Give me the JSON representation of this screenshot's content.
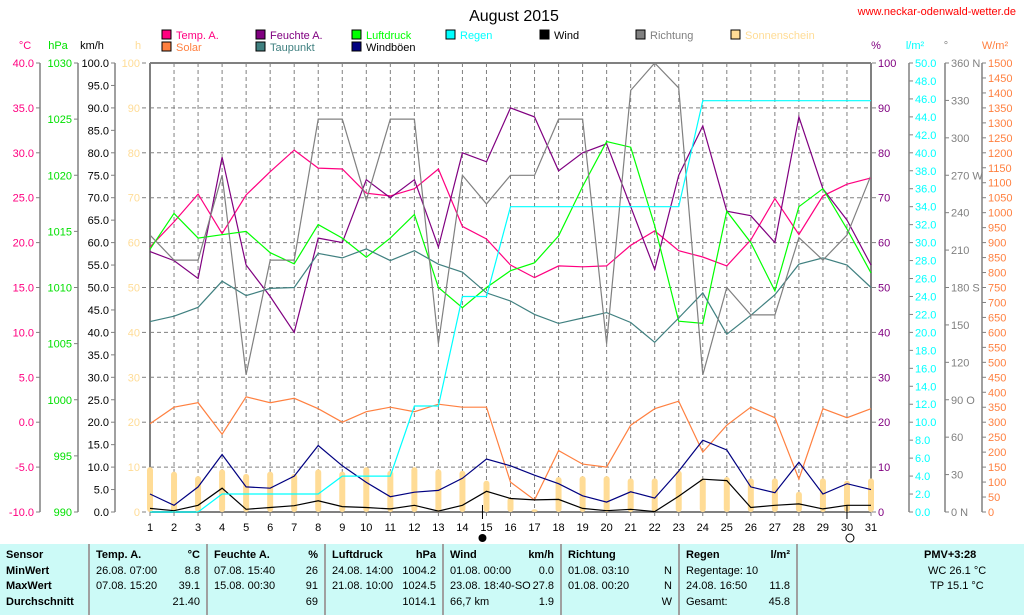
{
  "header": {
    "title": "August 2015",
    "site": "www.neckar-odenwald-wetter.de"
  },
  "legend": [
    {
      "label": "Temp. A.",
      "color": "#ff0080"
    },
    {
      "label": "Solar",
      "color": "#ff8040"
    },
    {
      "label": "Feuchte A.",
      "color": "#800080"
    },
    {
      "label": "Taupunkt",
      "color": "#408080"
    },
    {
      "label": "Luftdruck",
      "color": "#00ff00"
    },
    {
      "label": "Windböen",
      "color": "#000080"
    },
    {
      "label": "Regen",
      "color": "#00ffff"
    },
    {
      "label": "Wind",
      "color": "#000000"
    },
    {
      "label": "Richtung",
      "color": "#808080"
    },
    {
      "label": "Sonnenschein",
      "color": "#ffdc96"
    }
  ],
  "axes": {
    "temp": {
      "unit": "°C",
      "color": "#ff0080",
      "ticks": [
        "40.0",
        "35.0",
        "30.0",
        "25.0",
        "20.0",
        "15.0",
        "10.0",
        "5.0",
        "0.0",
        "-5.0",
        "-10.0"
      ]
    },
    "pressure": {
      "unit": "hPa",
      "color": "#00e000",
      "ticks": [
        "1030",
        "1025",
        "1020",
        "1015",
        "1010",
        "1005",
        "1000",
        "995",
        "990"
      ]
    },
    "wind": {
      "unit": "km/h",
      "color": "#000000",
      "ticks": [
        "100.0",
        "95.0",
        "90.0",
        "85.0",
        "80.0",
        "75.0",
        "70.0",
        "65.0",
        "60.0",
        "55.0",
        "50.0",
        "45.0",
        "40.0",
        "35.0",
        "30.0",
        "25.0",
        "20.0",
        "15.0",
        "10.0",
        "5.0",
        "0.0"
      ]
    },
    "sun": {
      "unit": "h",
      "color": "#ffdc96",
      "ticks": [
        "100",
        "90",
        "80",
        "70",
        "60",
        "50",
        "40",
        "30",
        "20",
        "10",
        "0"
      ]
    },
    "humidity": {
      "unit": "%",
      "color": "#800080",
      "ticks": [
        "100",
        "90",
        "80",
        "70",
        "60",
        "50",
        "40",
        "30",
        "20",
        "10",
        "0"
      ]
    },
    "rain": {
      "unit": "l/m²",
      "color": "#00ffff",
      "ticks": [
        "50.0",
        "48.0",
        "46.0",
        "44.0",
        "42.0",
        "40.0",
        "38.0",
        "36.0",
        "34.0",
        "32.0",
        "30.0",
        "28.0",
        "26.0",
        "24.0",
        "22.0",
        "20.0",
        "18.0",
        "16.0",
        "14.0",
        "12.0",
        "10.0",
        "8.0",
        "6.0",
        "4.0",
        "2.0",
        "0.0"
      ]
    },
    "direction": {
      "unit": "°",
      "color": "#808080",
      "ticks": [
        "360 N",
        "330",
        "300",
        "270 W",
        "240",
        "210",
        "180 S",
        "150",
        "120",
        "90  O",
        "60",
        "30",
        "0   N"
      ]
    },
    "solar": {
      "unit": "W/m²",
      "color": "#ff8040",
      "ticks": [
        "1500",
        "1450",
        "1400",
        "1350",
        "1300",
        "1250",
        "1200",
        "1150",
        "1100",
        "1050",
        "1000",
        "950",
        "900",
        "850",
        "800",
        "750",
        "700",
        "650",
        "600",
        "550",
        "500",
        "450",
        "400",
        "350",
        "300",
        "250",
        "200",
        "150",
        "100",
        "50",
        "0"
      ]
    }
  },
  "chart_data": {
    "type": "line",
    "title": "August 2015",
    "x": [
      1,
      2,
      3,
      4,
      5,
      6,
      7,
      8,
      9,
      10,
      11,
      12,
      13,
      14,
      15,
      16,
      17,
      18,
      19,
      20,
      21,
      22,
      23,
      24,
      25,
      26,
      27,
      28,
      29,
      30,
      31
    ],
    "xlabel": "",
    "series": [
      {
        "name": "Temp. A.",
        "axis": "temp",
        "ylim": [
          -10,
          40
        ],
        "values": [
          19.5,
          22.3,
          25.4,
          21.0,
          25.3,
          27.9,
          30.3,
          28.3,
          28.2,
          25.5,
          25.2,
          26.0,
          28.2,
          21.8,
          20.4,
          17.5,
          16.1,
          17.4,
          17.3,
          17.4,
          19.7,
          21.3,
          19.1,
          18.4,
          17.4,
          20.3,
          24.9,
          20.9,
          25.2,
          26.5,
          27.2
        ]
      },
      {
        "name": "Feuchte A.",
        "axis": "humidity",
        "ylim": [
          0,
          100
        ],
        "values": [
          58,
          56,
          52,
          79,
          55,
          48,
          40,
          61,
          60,
          74,
          70,
          74,
          59,
          80,
          78,
          90,
          88,
          76,
          80,
          82,
          68,
          54,
          75,
          86,
          67,
          66,
          60,
          88,
          72,
          65,
          55
        ]
      },
      {
        "name": "Luftdruck",
        "axis": "pressure",
        "ylim": [
          990,
          1030
        ],
        "values": [
          1013.4,
          1016.6,
          1014.4,
          1014.7,
          1015.0,
          1013.1,
          1012.1,
          1015.6,
          1014.4,
          1012.7,
          1014.4,
          1016.5,
          1010.0,
          1008.2,
          1010.0,
          1011.5,
          1012.2,
          1014.6,
          1019.0,
          1023.0,
          1022.5,
          1015.5,
          1007.0,
          1006.8,
          1016.8,
          1014.0,
          1009.7,
          1017.2,
          1018.8,
          1015.2,
          1011.3
        ]
      },
      {
        "name": "Taupunkt",
        "axis": "temp",
        "ylim": [
          -10,
          40
        ],
        "values": [
          11.2,
          11.8,
          12.8,
          15.7,
          14.1,
          14.9,
          15.0,
          18.8,
          18.3,
          19.3,
          18.0,
          19.1,
          17.6,
          16.7,
          14.4,
          13.5,
          12.0,
          11.0,
          11.6,
          12.2,
          11.1,
          8.9,
          11.6,
          14.4,
          9.8,
          11.9,
          14.2,
          17.6,
          18.3,
          17.5,
          15.0
        ]
      },
      {
        "name": "Solar",
        "axis": "solar",
        "ylim": [
          0,
          1500
        ],
        "values": [
          295,
          350,
          365,
          260,
          385,
          365,
          380,
          345,
          300,
          335,
          350,
          335,
          360,
          350,
          350,
          100,
          40,
          205,
          160,
          150,
          290,
          345,
          370,
          200,
          290,
          350,
          315,
          110,
          345,
          315,
          345
        ]
      },
      {
        "name": "Wind",
        "axis": "wind",
        "ylim": [
          0,
          100
        ],
        "values": [
          0.8,
          0.3,
          1.5,
          5.3,
          0.6,
          1.0,
          1.4,
          2.5,
          1.2,
          1.0,
          0.7,
          1.5,
          0.2,
          1.5,
          4.6,
          3.0,
          2.7,
          2.8,
          0.8,
          0.3,
          0.6,
          0.1,
          3.5,
          7.3,
          7.0,
          1.0,
          1.5,
          1.8,
          0.7,
          1.5,
          1.5
        ]
      },
      {
        "name": "Windböen",
        "axis": "wind",
        "ylim": [
          0,
          100
        ],
        "values": [
          4.0,
          1.5,
          5.6,
          12.8,
          5.6,
          5.3,
          8.0,
          14.8,
          10.3,
          6.6,
          3.4,
          4.4,
          4.8,
          7.5,
          11.8,
          10.3,
          8.2,
          6.3,
          3.6,
          2.2,
          4.5,
          3.1,
          9.1,
          16.0,
          13.8,
          5.6,
          4.3,
          11.1,
          4.0,
          6.3,
          5.0
        ]
      },
      {
        "name": "Richtung",
        "axis": "direction",
        "ylim": [
          0,
          360
        ],
        "values": [
          222,
          202,
          202,
          270,
          110,
          202,
          202,
          315,
          315,
          250,
          315,
          315,
          135,
          270,
          247,
          270,
          270,
          315,
          315,
          135,
          338,
          360,
          340,
          110,
          180,
          158,
          158,
          220,
          202,
          222,
          270
        ]
      },
      {
        "name": "Regen",
        "axis": "rain",
        "ylim": [
          0,
          50
        ],
        "values": [
          0,
          0,
          0,
          2.0,
          2.0,
          2.0,
          2.0,
          2.0,
          4.0,
          4.0,
          4.0,
          11.8,
          11.8,
          24.0,
          24.0,
          34.0,
          34.0,
          34.0,
          34.0,
          34.0,
          34.0,
          34.0,
          34.0,
          45.8,
          45.8,
          45.8,
          45.8,
          45.8,
          45.8,
          45.8,
          45.8
        ]
      },
      {
        "name": "Sonnenschein",
        "type": "bar",
        "axis": "sun",
        "ylim": [
          0,
          100
        ],
        "values": [
          10,
          9,
          8,
          9.5,
          8.5,
          9,
          8.5,
          9.5,
          9,
          10,
          9.2,
          10,
          9.5,
          9.2,
          7,
          3.2,
          0.6,
          7.8,
          8,
          8,
          7.5,
          7.5,
          9.2,
          7.5,
          7.8,
          7.5,
          7.5,
          4.5,
          7.5,
          7,
          7.5
        ]
      }
    ],
    "annotations": [
      {
        "day": 15,
        "label": "full moon"
      },
      {
        "day": 30,
        "label": "new moon"
      }
    ],
    "grid": true
  },
  "table": {
    "sensor": {
      "h": "Sensor",
      "rows": [
        "MinWert",
        "MaxWert",
        "Durchschnitt"
      ]
    },
    "temp": {
      "h": "Temp. A.",
      "u": "°C",
      "rows": [
        [
          "26.08.  07:00",
          "8.8"
        ],
        [
          "07.08.  15:20",
          "39.1"
        ],
        [
          "",
          "21.40"
        ]
      ]
    },
    "hum": {
      "h": "Feuchte A.",
      "u": "%",
      "rows": [
        [
          "07.08.  15:40",
          "26"
        ],
        [
          "15.08.  00:30",
          "91"
        ],
        [
          "",
          "69"
        ]
      ]
    },
    "press": {
      "h": "Luftdruck",
      "u": "hPa",
      "rows": [
        [
          "24.08.  14:00",
          "1004.2"
        ],
        [
          "21.08.  10:00",
          "1024.5"
        ],
        [
          "",
          "1014.1"
        ]
      ]
    },
    "wind": {
      "h": "Wind",
      "u": "km/h",
      "rows": [
        [
          "01.08.  00:00",
          "0.0"
        ],
        [
          "23.08.  18:40-SO",
          "27.8"
        ],
        [
          "66,7 km",
          "1.9"
        ]
      ]
    },
    "dir": {
      "h": "Richtung",
      "rows": [
        [
          "01.08.  03:10",
          "N"
        ],
        [
          "01.08.  00:20",
          "N"
        ],
        [
          "",
          "W"
        ]
      ]
    },
    "rain": {
      "h": "Regen",
      "u": "l/m²",
      "rows": [
        [
          "Regentage: 10",
          ""
        ],
        [
          "24.08.  16:50",
          "11.8"
        ],
        [
          "Gesamt:",
          "45.8"
        ]
      ]
    },
    "pmv": {
      "h": "PMV+3:28",
      "rows": [
        "WC 26.1 °C",
        "TP 15.1 °C"
      ]
    }
  }
}
